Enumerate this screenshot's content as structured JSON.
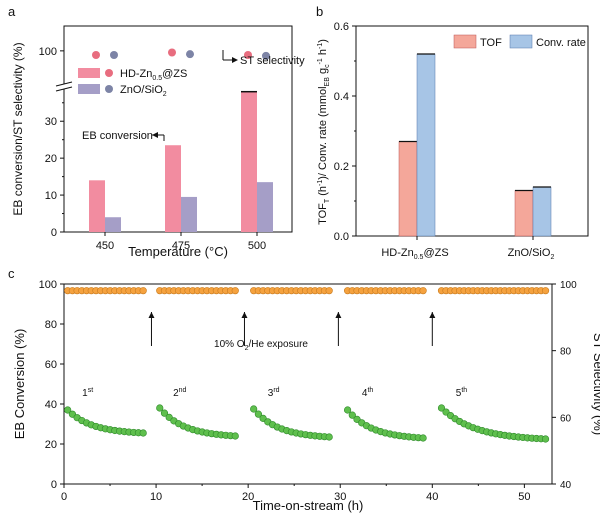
{
  "colors": {
    "pink": "#f28ca0",
    "lav": "#a59ec7",
    "salmon": "#f4a79a",
    "blue": "#a7c5e6",
    "orange": "#f5a23f",
    "green": "#5fbf4d"
  },
  "panels": {
    "a": "a",
    "b": "b",
    "c": "c"
  },
  "chart_data": [
    {
      "id": "a",
      "type": "bar",
      "categories": [
        "450",
        "475",
        "500"
      ],
      "series": [
        {
          "name": "HD-Zn0.5@ZS",
          "values": [
            14,
            23.5,
            38
          ]
        },
        {
          "name": "ZnO/SiO2",
          "values": [
            4,
            9.5,
            13.5
          ]
        }
      ],
      "st_selectivity": [
        {
          "name": "HD-Zn0.5@ZS",
          "values": [
            99.5,
            99.8,
            99.5
          ]
        },
        {
          "name": "ZnO/SiO2",
          "values": [
            99.5,
            99.6,
            99.4
          ]
        }
      ],
      "xlabel": "Temperature (°C)",
      "ylabel": "EB conversion/ST selectivity (%)",
      "yticks_lower": [
        "0",
        "10",
        "20",
        "30"
      ],
      "ytick_upper": "100",
      "ylim_lower": [
        0,
        39
      ],
      "ylim_upper": [
        96,
        103
      ],
      "legend": [
        {
          "main": "HD-Zn",
          "sub": "0.5",
          "post": "@ZS"
        },
        {
          "main": "ZnO/SiO",
          "sub": "2",
          "post": ""
        }
      ],
      "annotations": {
        "st": "ST selectivity",
        "eb": "EB conversion"
      }
    },
    {
      "id": "b",
      "type": "bar",
      "categories": [
        "HD-Zn0.5@ZS",
        "ZnO/SiO2"
      ],
      "series": [
        {
          "name": "TOF",
          "values": [
            0.27,
            0.13
          ]
        },
        {
          "name": "Conv. rate",
          "values": [
            0.52,
            0.14
          ]
        }
      ],
      "category_labels": [
        {
          "main": "HD-Zn",
          "sub": "0.5",
          "post": "@ZS"
        },
        {
          "main": "ZnO/SiO",
          "sub": "2",
          "post": ""
        }
      ],
      "ylabel": "TOF (h⁻¹)/ Conv. rate (mmol_EB g_c⁻¹ h⁻¹)",
      "ylabel_parts": {
        "a": "TOF",
        "b": "(h",
        "c": "-1",
        "d": ")/ Conv. rate (mmol",
        "e": "EB",
        "f": " g",
        "g": "c",
        "h": "-1",
        "i": " h",
        "j": "-1",
        "k": ")"
      },
      "yticks": [
        "0.0",
        "0.2",
        "0.4",
        "0.6"
      ],
      "ylim": [
        0,
        0.6
      ],
      "legend": [
        "TOF",
        "Conv. rate"
      ]
    },
    {
      "id": "c",
      "type": "scatter",
      "xlabel": "Time-on-stream (h)",
      "ylabel_left": "EB Conversion (%)",
      "ylabel_right": "ST Selectivity (%)",
      "xlim": [
        0,
        53
      ],
      "ylim_left": [
        0,
        100
      ],
      "ylim_right": [
        40,
        100
      ],
      "xticks": [
        "0",
        "10",
        "20",
        "30",
        "40",
        "50"
      ],
      "yticks_left": [
        "0",
        "20",
        "40",
        "60",
        "80",
        "100"
      ],
      "yticks_right": [
        "40",
        "60",
        "80",
        "100"
      ],
      "cycles": [
        {
          "label": "1",
          "sup": "st",
          "start": 0.4,
          "end": 8.6,
          "conv_start": 37,
          "conv_end": 25.5,
          "sel": 98
        },
        {
          "label": "2",
          "sup": "nd",
          "start": 10.4,
          "end": 18.6,
          "conv_start": 38,
          "conv_end": 24,
          "sel": 98
        },
        {
          "label": "3",
          "sup": "rd",
          "start": 20.6,
          "end": 28.8,
          "conv_start": 37.5,
          "conv_end": 23.5,
          "sel": 98
        },
        {
          "label": "4",
          "sup": "th",
          "start": 30.8,
          "end": 39,
          "conv_start": 37,
          "conv_end": 23,
          "sel": 98
        },
        {
          "label": "5",
          "sup": "th",
          "start": 41,
          "end": 52.3,
          "conv_start": 38,
          "conv_end": 22.5,
          "sel": 98
        }
      ],
      "regeneration_times": [
        9.5,
        19.6,
        29.8,
        40
      ],
      "annotation": {
        "pre": "10% O",
        "sub": "2",
        "post": "/He exposure"
      }
    }
  ]
}
